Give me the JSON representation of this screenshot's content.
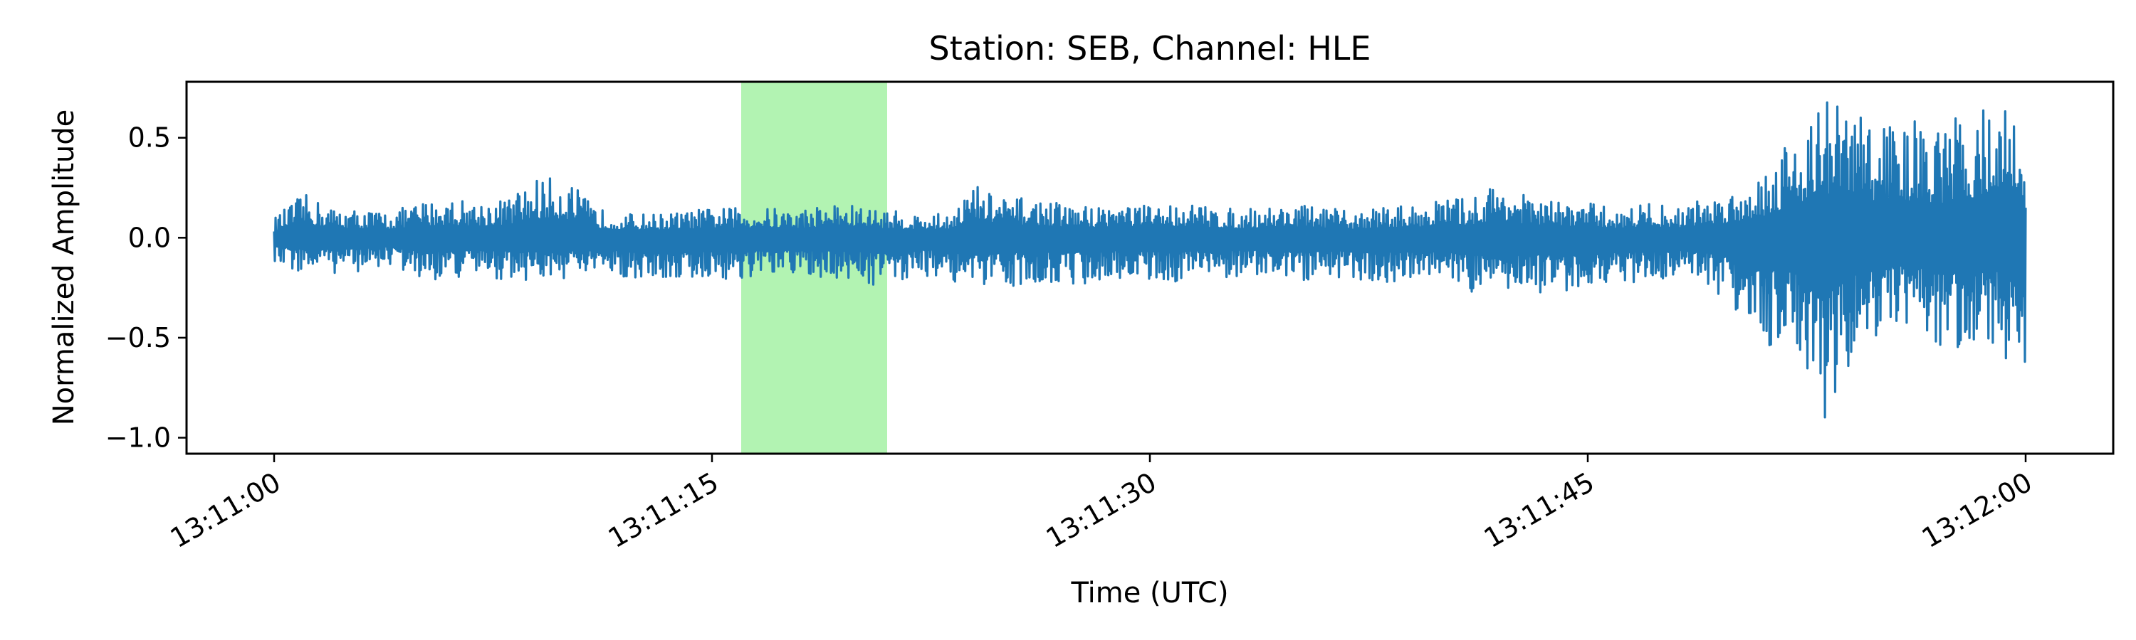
{
  "chart_data": {
    "type": "line",
    "title": "Station: SEB, Channel: HLE",
    "xlabel": "Time (UTC)",
    "ylabel": "Normalized Amplitude",
    "x_ticks": [
      "13:11:00",
      "13:11:15",
      "13:11:30",
      "13:11:45",
      "13:12:00"
    ],
    "x_tick_values_seconds": [
      0,
      15,
      30,
      45,
      60
    ],
    "y_ticks": [
      "0.5",
      "0.0",
      "−0.5",
      "−1.0"
    ],
    "y_tick_values": [
      0.5,
      0.0,
      -0.5,
      -1.0
    ],
    "xlim_seconds": [
      -3,
      63
    ],
    "ylim": [
      -1.08,
      0.78
    ],
    "grid": false,
    "line_color": "#1f77b4",
    "highlight": {
      "x_start_seconds": 16.0,
      "x_end_seconds": 21.0,
      "color": "#b2f3b2"
    },
    "series": [
      {
        "x_seconds": [
          0,
          1,
          2,
          3,
          4,
          5,
          6,
          7,
          8,
          9,
          10,
          11,
          12,
          13,
          14,
          15,
          16,
          17,
          18,
          19,
          20,
          21,
          22,
          23,
          24,
          25,
          26,
          27,
          28,
          29,
          30,
          31,
          32,
          33,
          34,
          35,
          36,
          37,
          38,
          39,
          40,
          41,
          42,
          43,
          44,
          45,
          46,
          47,
          48,
          49,
          50,
          51,
          52,
          53,
          54,
          55,
          56,
          57,
          58,
          59,
          60
        ],
        "envelope_max": [
          0.1,
          0.22,
          0.15,
          0.14,
          0.13,
          0.18,
          0.2,
          0.18,
          0.2,
          0.3,
          0.3,
          0.15,
          0.12,
          0.12,
          0.13,
          0.15,
          0.15,
          0.15,
          0.14,
          0.18,
          0.16,
          0.14,
          0.12,
          0.12,
          0.27,
          0.2,
          0.2,
          0.17,
          0.16,
          0.18,
          0.16,
          0.18,
          0.16,
          0.14,
          0.16,
          0.17,
          0.15,
          0.13,
          0.16,
          0.16,
          0.2,
          0.2,
          0.29,
          0.2,
          0.18,
          0.18,
          0.14,
          0.18,
          0.15,
          0.2,
          0.24,
          0.34,
          0.53,
          0.7,
          0.69,
          0.58,
          0.6,
          0.54,
          0.64,
          0.69,
          0.66
        ],
        "envelope_min": [
          -0.14,
          -0.18,
          -0.18,
          -0.17,
          -0.14,
          -0.22,
          -0.21,
          -0.2,
          -0.21,
          -0.22,
          -0.21,
          -0.2,
          -0.2,
          -0.22,
          -0.21,
          -0.21,
          -0.22,
          -0.2,
          -0.2,
          -0.21,
          -0.22,
          -0.25,
          -0.19,
          -0.2,
          -0.28,
          -0.25,
          -0.22,
          -0.24,
          -0.23,
          -0.2,
          -0.22,
          -0.22,
          -0.2,
          -0.2,
          -0.2,
          -0.22,
          -0.22,
          -0.2,
          -0.24,
          -0.2,
          -0.22,
          -0.27,
          -0.3,
          -0.27,
          -0.28,
          -0.23,
          -0.24,
          -0.22,
          -0.2,
          -0.22,
          -0.35,
          -0.55,
          -0.5,
          -1.0,
          -0.62,
          -0.49,
          -0.45,
          -0.57,
          -0.59,
          -0.55,
          -0.72
        ]
      }
    ]
  }
}
